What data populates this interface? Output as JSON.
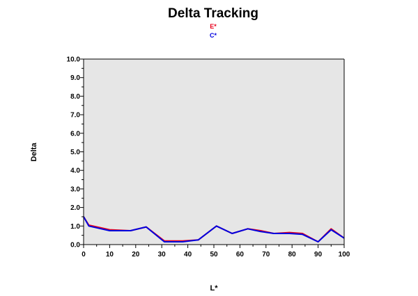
{
  "chart_data": {
    "type": "line",
    "title": "Delta Tracking",
    "xlabel": "L*",
    "ylabel": "Delta",
    "xlim": [
      0,
      100
    ],
    "ylim": [
      0,
      10
    ],
    "grid": false,
    "legend_position": "top-center",
    "plot_background": "#e6e6e6",
    "x_ticks": [
      "0",
      "10",
      "20",
      "30",
      "40",
      "50",
      "60",
      "70",
      "80",
      "90",
      "100"
    ],
    "y_ticks": [
      "0.0",
      "1.0",
      "2.0",
      "3.0",
      "4.0",
      "5.0",
      "6.0",
      "7.0",
      "8.0",
      "9.0",
      "10.0"
    ],
    "series": [
      {
        "name": "E*",
        "color": "#e8001c",
        "x": [
          0,
          2,
          10,
          18,
          24,
          31,
          38,
          44,
          51,
          57,
          63,
          68,
          73,
          79,
          84,
          90,
          95,
          100
        ],
        "y": [
          1.5,
          1.05,
          0.8,
          0.75,
          0.95,
          0.2,
          0.2,
          0.25,
          1.0,
          0.6,
          0.85,
          0.75,
          0.6,
          0.65,
          0.6,
          0.15,
          0.85,
          0.35
        ]
      },
      {
        "name": "C*",
        "color": "#0000e0",
        "x": [
          0,
          2,
          10,
          18,
          24,
          31,
          38,
          44,
          51,
          57,
          63,
          68,
          73,
          79,
          84,
          90,
          95,
          100
        ],
        "y": [
          1.5,
          1.0,
          0.75,
          0.75,
          0.95,
          0.15,
          0.15,
          0.25,
          1.0,
          0.6,
          0.85,
          0.7,
          0.6,
          0.6,
          0.55,
          0.15,
          0.8,
          0.35
        ]
      }
    ]
  }
}
